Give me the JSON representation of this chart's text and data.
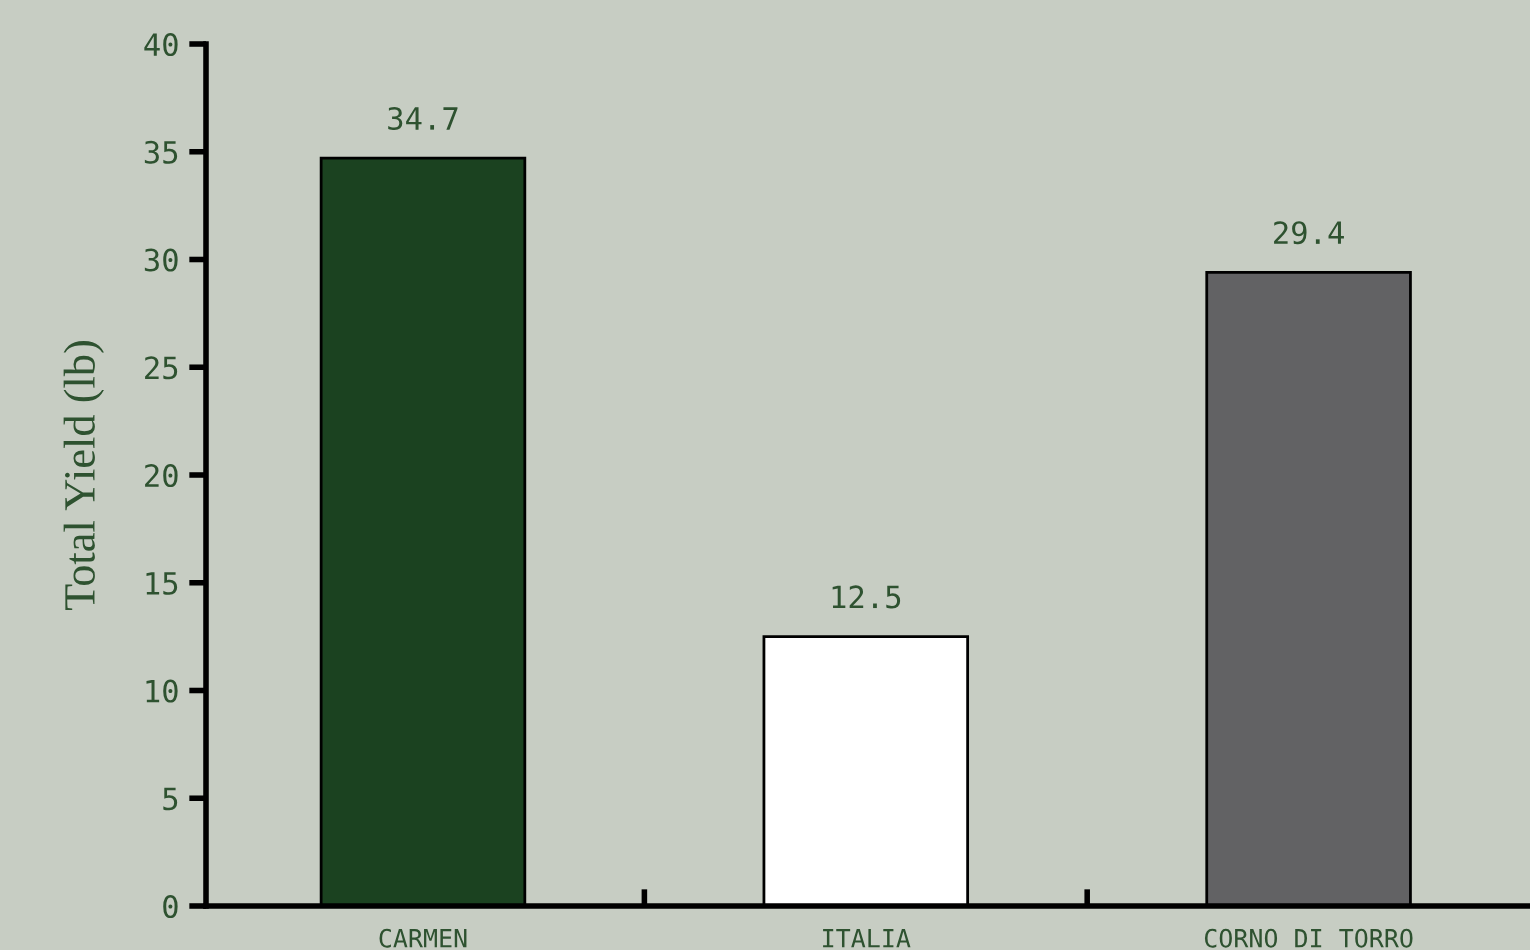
{
  "chart_data": {
    "type": "bar",
    "ylabel": "Total Yield (lb)",
    "categories": [
      "CARMEN",
      "ITALIA",
      "CORNO DI TORRO"
    ],
    "values": [
      34.7,
      12.5,
      29.4
    ],
    "colors": [
      "#1b4220",
      "#ffffff",
      "#626264"
    ],
    "ylim": [
      0,
      40
    ],
    "yticks": [
      0,
      5,
      10,
      15,
      20,
      25,
      30,
      35,
      40
    ],
    "data_labels": true,
    "grid": false,
    "legend": false
  }
}
